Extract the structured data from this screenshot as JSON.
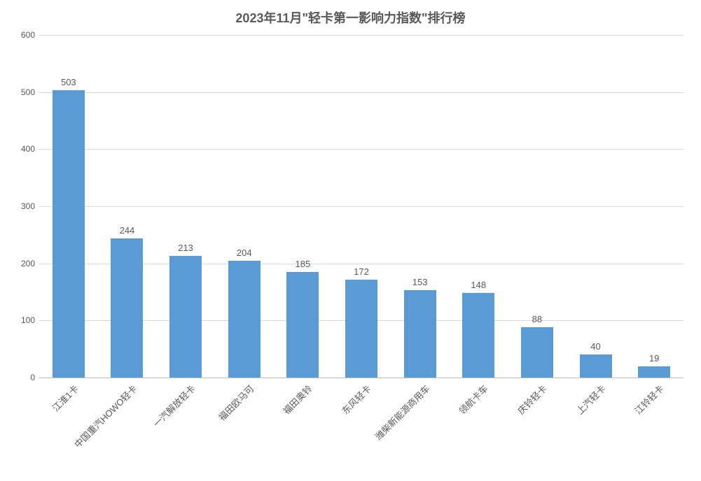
{
  "chart": {
    "type": "bar",
    "title": "2023年11月\"轻卡第一影响力指数\"排行榜",
    "title_fontsize": 18,
    "title_color": "#595959",
    "background_color": "#ffffff",
    "plot_background_color": "#ffffff",
    "grid_color": "#d9d9d9",
    "axis_line_color": "#bfbfbf",
    "label_color": "#595959",
    "categories": [
      "江淮1卡",
      "中国重汽HOWO轻卡",
      "一汽解放轻卡",
      "福田欧马可",
      "福田奥铃",
      "东风轻卡",
      "潍柴新能源商用车",
      "领航卡车",
      "庆铃轻卡",
      "上汽轻卡",
      "江铃轻卡"
    ],
    "values": [
      503,
      244,
      213,
      204,
      185,
      172,
      153,
      148,
      88,
      40,
      19
    ],
    "bar_color": "#5b9bd5",
    "bar_width_ratio": 0.55,
    "value_label_fontsize": 13,
    "tick_label_fontsize": 12,
    "x_label_fontsize": 13,
    "x_label_rotation_deg": -45,
    "ylim": [
      0,
      600
    ],
    "ytick_step": 100,
    "yticks": [
      0,
      100,
      200,
      300,
      400,
      500,
      600
    ]
  }
}
